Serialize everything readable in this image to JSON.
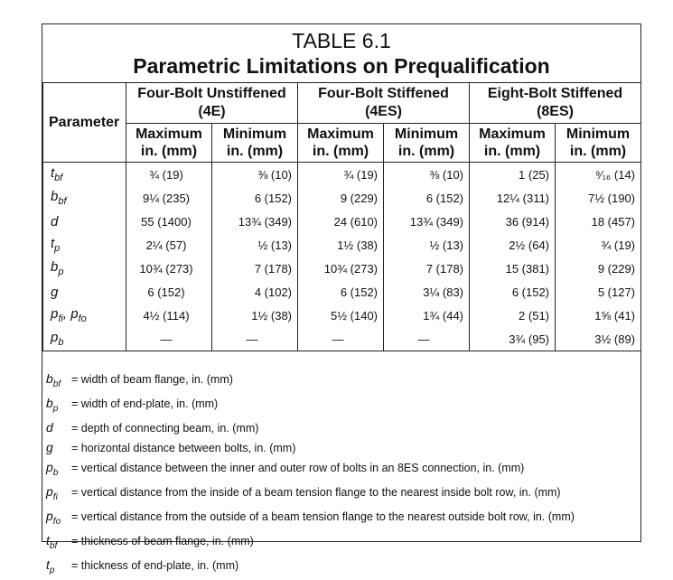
{
  "title": {
    "line1": "TABLE 6.1",
    "line2": "Parametric Limitations on Prequalification"
  },
  "header": {
    "parameter": "Parameter",
    "groups": [
      {
        "line1": "Four-Bolt Unstiffened",
        "line2": "(4E)"
      },
      {
        "line1": "Four-Bolt Stiffened",
        "line2": "(4ES)"
      },
      {
        "line1": "Eight-Bolt Stiffened",
        "line2": "(8ES)"
      }
    ],
    "max_line1": "Maximum",
    "min_line1": "Minimum",
    "unit": "in. (mm)"
  },
  "rows": [
    {
      "base": "t",
      "sub": "bf",
      "values": [
        "¾ (19)",
        "⅜ (10)",
        "¾ (19)",
        "⅜ (10)",
        "1 (25)",
        "⁹⁄₁₆ (14)"
      ]
    },
    {
      "base": "b",
      "sub": "bf",
      "values": [
        "9¼ (235)",
        "6 (152)",
        "9 (229)",
        "6 (152)",
        "12¼ (311)",
        "7½ (190)"
      ]
    },
    {
      "base": "d",
      "sub": "",
      "values": [
        "55 (1400)",
        "13¾ (349)",
        "24 (610)",
        "13¾ (349)",
        "36 (914)",
        "18 (457)"
      ]
    },
    {
      "base": "t",
      "sub": "p",
      "values": [
        "2¼ (57)",
        "½ (13)",
        "1½ (38)",
        "½ (13)",
        "2½ (64)",
        "¾ (19)"
      ]
    },
    {
      "base": "b",
      "sub": "p",
      "values": [
        "10¾ (273)",
        "7 (178)",
        "10¾ (273)",
        "7 (178)",
        "15 (381)",
        "9 (229)"
      ]
    },
    {
      "base": "g",
      "sub": "",
      "values": [
        "6 (152)",
        "4 (102)",
        "6 (152)",
        "3¼ (83)",
        "6 (152)",
        "5 (127)"
      ]
    },
    {
      "base": "p",
      "sub": "fi",
      "base2": "p",
      "sub2": "fo",
      "values": [
        "4½ (114)",
        "1½ (38)",
        "5½ (140)",
        "1¾ (44)",
        "2 (51)",
        "1⅝ (41)"
      ]
    },
    {
      "base": "p",
      "sub": "b",
      "values": [
        "—",
        "—",
        "—",
        "—",
        "3¾ (95)",
        "3½ (89)"
      ]
    }
  ],
  "notes": [
    {
      "base": "b",
      "sub": "bf",
      "text": "= width of beam flange, in. (mm)"
    },
    {
      "base": "b",
      "sub": "p",
      "text": "= width of end-plate, in. (mm)"
    },
    {
      "base": "d",
      "sub": "",
      "text": "= depth of connecting beam, in. (mm)"
    },
    {
      "base": "g",
      "sub": "",
      "text": "= horizontal distance between bolts, in. (mm)"
    },
    {
      "base": "p",
      "sub": "b",
      "text": "= vertical distance between the inner and outer row of bolts in an 8ES connection, in. (mm)"
    },
    {
      "base": "p",
      "sub": "fi",
      "text": "= vertical distance from the inside of a beam tension flange to the nearest inside bolt row, in. (mm)"
    },
    {
      "base": "p",
      "sub": "fo",
      "text": "= vertical distance from the outside of a beam tension flange to the nearest outside bolt row, in. (mm)"
    },
    {
      "base": "t",
      "sub": "bf",
      "text": "= thickness of beam flange, in. (mm)"
    },
    {
      "base": "t",
      "sub": "p",
      "text": "= thickness of end-plate, in. (mm)"
    }
  ]
}
